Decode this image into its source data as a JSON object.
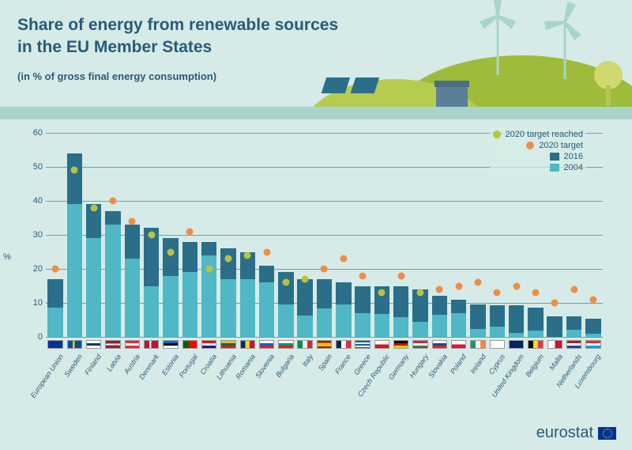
{
  "header": {
    "title_line1": "Share of energy from renewable sources",
    "title_line2": "in the EU Member States",
    "subtitle": "(in % of gross final energy consumption)"
  },
  "chart": {
    "type": "bar",
    "yaxis_label": "%",
    "ylim": [
      0,
      60
    ],
    "ytick_step": 10,
    "gridline_color": "#5aa8b8",
    "background_color": "#d6ebe7",
    "bar_2004_color": "#4fb8c4",
    "bar_2016_color": "#2a6e8a",
    "target_reached_color": "#b8c43b",
    "target_not_reached_color": "#f08c4a",
    "tick_font_size": 11,
    "label_font_size": 9,
    "categories": [
      {
        "name": "European Union",
        "flag": "eu",
        "v2004": 8.5,
        "v2016": 17.0,
        "target": 20,
        "reached": false
      },
      {
        "name": "Sweden",
        "flag": "se",
        "v2004": 39,
        "v2016": 54,
        "target": 49,
        "reached": true
      },
      {
        "name": "Finland",
        "flag": "fi",
        "v2004": 29,
        "v2016": 39,
        "target": 38,
        "reached": true
      },
      {
        "name": "Latvia",
        "flag": "lv",
        "v2004": 33,
        "v2016": 37,
        "target": 40,
        "reached": false
      },
      {
        "name": "Austria",
        "flag": "at",
        "v2004": 23,
        "v2016": 33,
        "target": 34,
        "reached": false
      },
      {
        "name": "Denmark",
        "flag": "dk",
        "v2004": 15,
        "v2016": 32,
        "target": 30,
        "reached": true
      },
      {
        "name": "Estonia",
        "flag": "ee",
        "v2004": 18,
        "v2016": 29,
        "target": 25,
        "reached": true
      },
      {
        "name": "Portugal",
        "flag": "pt",
        "v2004": 19,
        "v2016": 28,
        "target": 31,
        "reached": false
      },
      {
        "name": "Croatia",
        "flag": "hr",
        "v2004": 24,
        "v2016": 28,
        "target": 20,
        "reached": true
      },
      {
        "name": "Lithuania",
        "flag": "lt",
        "v2004": 17,
        "v2016": 26,
        "target": 23,
        "reached": true
      },
      {
        "name": "Romania",
        "flag": "ro",
        "v2004": 17,
        "v2016": 25,
        "target": 24,
        "reached": true
      },
      {
        "name": "Slovenia",
        "flag": "si",
        "v2004": 16,
        "v2016": 21,
        "target": 25,
        "reached": false
      },
      {
        "name": "Bulgaria",
        "flag": "bg",
        "v2004": 9.5,
        "v2016": 19,
        "target": 16,
        "reached": true
      },
      {
        "name": "Italy",
        "flag": "it",
        "v2004": 6.3,
        "v2016": 17,
        "target": 17,
        "reached": true
      },
      {
        "name": "Spain",
        "flag": "es",
        "v2004": 8.3,
        "v2016": 17,
        "target": 20,
        "reached": false
      },
      {
        "name": "France",
        "flag": "fr",
        "v2004": 9.5,
        "v2016": 16,
        "target": 23,
        "reached": false
      },
      {
        "name": "Greece",
        "flag": "gr",
        "v2004": 7,
        "v2016": 15,
        "target": 18,
        "reached": false
      },
      {
        "name": "Czech Republic",
        "flag": "cz",
        "v2004": 6.8,
        "v2016": 15,
        "target": 13,
        "reached": true
      },
      {
        "name": "Germany",
        "flag": "de",
        "v2004": 5.8,
        "v2016": 15,
        "target": 18,
        "reached": false
      },
      {
        "name": "Hungary",
        "flag": "hu",
        "v2004": 4.4,
        "v2016": 14,
        "target": 13,
        "reached": true
      },
      {
        "name": "Slovakia",
        "flag": "sk",
        "v2004": 6.4,
        "v2016": 12,
        "target": 14,
        "reached": false
      },
      {
        "name": "Poland",
        "flag": "pl",
        "v2004": 6.9,
        "v2016": 11,
        "target": 15,
        "reached": false
      },
      {
        "name": "Ireland",
        "flag": "ie",
        "v2004": 2.4,
        "v2016": 9.5,
        "target": 16,
        "reached": false
      },
      {
        "name": "Cyprus",
        "flag": "cy",
        "v2004": 3.1,
        "v2016": 9.3,
        "target": 13,
        "reached": false
      },
      {
        "name": "United Kingdom",
        "flag": "gb",
        "v2004": 1.2,
        "v2016": 9.3,
        "target": 15,
        "reached": false
      },
      {
        "name": "Belgium",
        "flag": "be",
        "v2004": 1.9,
        "v2016": 8.7,
        "target": 13,
        "reached": false
      },
      {
        "name": "Malta",
        "flag": "mt",
        "v2004": 0.1,
        "v2016": 6.0,
        "target": 10,
        "reached": false
      },
      {
        "name": "Netherlands",
        "flag": "nl",
        "v2004": 2.1,
        "v2016": 6.0,
        "target": 14,
        "reached": false
      },
      {
        "name": "Luxembourg",
        "flag": "lu",
        "v2004": 0.9,
        "v2016": 5.4,
        "target": 11,
        "reached": false
      }
    ]
  },
  "legend": {
    "target_reached": "2020 target reached",
    "target": "2020 target",
    "y2016": "2016",
    "y2004": "2004"
  },
  "footer": {
    "brand": "eurostat"
  },
  "flags": {
    "eu": "linear-gradient(#003399,#003399)",
    "se": "linear-gradient(90deg,#005293 35%,#fecb00 35% 50%,#005293 50%)",
    "fi": "linear-gradient(#fff 35%, #003580 35% 65%, #fff 65%)",
    "lv": "linear-gradient(#9e1b34 40%, #fff 40% 60%, #9e1b34 60%)",
    "at": "linear-gradient(#ed2939 33%, #fff 33% 66%, #ed2939 66%)",
    "dk": "linear-gradient(90deg,#c8102e 35%,#fff 35% 50%,#c8102e 50%)",
    "ee": "linear-gradient(#0072ce 33%, #000 33% 66%, #fff 66%)",
    "pt": "linear-gradient(90deg,#006600 40%,#ff0000 40%)",
    "hr": "linear-gradient(#ff0000 33%, #fff 33% 66%, #171796 66%)",
    "lt": "linear-gradient(#fdb913 33%, #006a44 33% 66%, #c1272d 66%)",
    "ro": "linear-gradient(90deg,#002b7f 33%,#fcd116 33% 66%,#ce1126 66%)",
    "si": "linear-gradient(#fff 33%, #005ce5 33% 66%, #ed1c24 66%)",
    "bg": "linear-gradient(#fff 33%, #00966e 33% 66%, #d62612 66%)",
    "it": "linear-gradient(90deg,#009246 33%,#fff 33% 66%,#ce2b37 66%)",
    "es": "linear-gradient(#aa151b 25%, #f1bf00 25% 75%, #aa151b 75%)",
    "fr": "linear-gradient(90deg,#002654 33%,#fff 33% 66%,#ed2939 66%)",
    "gr": "repeating-linear-gradient(#0d5eaf 0 2px, #fff 2px 4px)",
    "cz": "linear-gradient(#fff 50%, #d7141a 50%)",
    "de": "linear-gradient(#000 33%, #dd0000 33% 66%, #ffce00 66%)",
    "hu": "linear-gradient(#cd2a3e 33%, #fff 33% 66%, #436f4d 66%)",
    "sk": "linear-gradient(#fff 33%, #0b4ea2 33% 66%, #ee1c25 66%)",
    "pl": "linear-gradient(#fff 50%, #dc143c 50%)",
    "ie": "linear-gradient(90deg,#169b62 33%,#fff 33% 66%,#ff883e 66%)",
    "cy": "linear-gradient(#fff,#fff)",
    "gb": "linear-gradient(#012169,#012169)",
    "be": "linear-gradient(90deg,#000 33%,#fdda24 33% 66%,#ef3340 66%)",
    "mt": "linear-gradient(90deg,#fff 50%,#cf142b 50%)",
    "nl": "linear-gradient(#ae1c28 33%, #fff 33% 66%, #21468b 66%)",
    "lu": "linear-gradient(#ed2939 33%, #fff 33% 66%, #00a1de 66%)"
  }
}
